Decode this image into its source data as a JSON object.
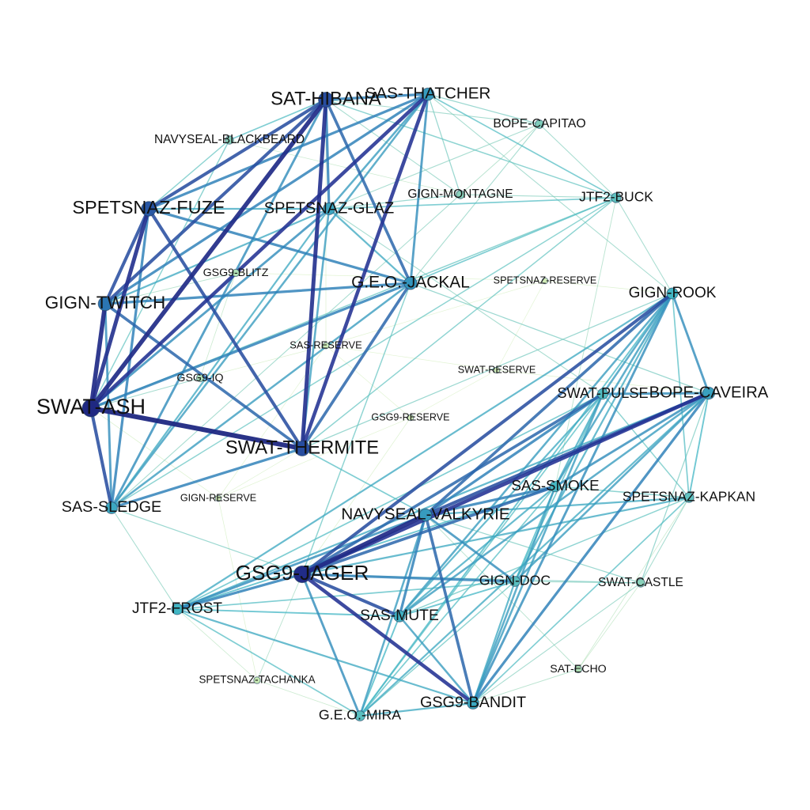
{
  "chart_data": {
    "type": "network",
    "description_note": "",
    "nodes": [
      {
        "id": "SWAT-ASH",
        "label": "SWAT-ASH",
        "weight": 1.0
      },
      {
        "id": "GSG9-JAGER",
        "label": "GSG9-JAGER",
        "weight": 0.95
      },
      {
        "id": "SAT-HIBANA",
        "label": "SAT-HIBANA",
        "weight": 0.8
      },
      {
        "id": "SWAT-THERMITE",
        "label": "SWAT-THERMITE",
        "weight": 0.8
      },
      {
        "id": "SPETSNAZ-FUZE",
        "label": "SPETSNAZ-FUZE",
        "weight": 0.78
      },
      {
        "id": "GIGN-TWITCH",
        "label": "GIGN-TWITCH",
        "weight": 0.72
      },
      {
        "id": "SAS-THATCHER",
        "label": "SAS-THATCHER",
        "weight": 0.6
      },
      {
        "id": "G.E.O.-JACKAL",
        "label": "G.E.O.-JACKAL",
        "weight": 0.62
      },
      {
        "id": "SPETSNAZ-GLAZ",
        "label": "SPETSNAZ-GLAZ",
        "weight": 0.56
      },
      {
        "id": "NAVYSEAL-VALKYRIE",
        "label": "NAVYSEAL-VALKYRIE",
        "weight": 0.6
      },
      {
        "id": "BOPE-CAVEIRA",
        "label": "BOPE-CAVEIRA",
        "weight": 0.58
      },
      {
        "id": "SAS-SLEDGE",
        "label": "SAS-SLEDGE",
        "weight": 0.55
      },
      {
        "id": "GSG9-BANDIT",
        "label": "GSG9-BANDIT",
        "weight": 0.55
      },
      {
        "id": "SAS-MUTE",
        "label": "SAS-MUTE",
        "weight": 0.52
      },
      {
        "id": "GIGN-ROOK",
        "label": "GIGN-ROOK",
        "weight": 0.5
      },
      {
        "id": "JTF2-FROST",
        "label": "JTF2-FROST",
        "weight": 0.5
      },
      {
        "id": "SAS-SMOKE",
        "label": "SAS-SMOKE",
        "weight": 0.48
      },
      {
        "id": "SWAT-PULSE",
        "label": "SWAT-PULSE",
        "weight": 0.45
      },
      {
        "id": "GIGN-DOC",
        "label": "GIGN-DOC",
        "weight": 0.42
      },
      {
        "id": "G.E.O.-MIRA",
        "label": "G.E.O.-MIRA",
        "weight": 0.42
      },
      {
        "id": "SPETSNAZ-KAPKAN",
        "label": "SPETSNAZ-KAPKAN",
        "weight": 0.4
      },
      {
        "id": "JTF2-BUCK",
        "label": "JTF2-BUCK",
        "weight": 0.4
      },
      {
        "id": "BOPE-CAPITAO",
        "label": "BOPE-CAPITAO",
        "weight": 0.3
      },
      {
        "id": "NAVYSEAL-BLACKBEARD",
        "label": "NAVYSEAL-BLACKBEARD",
        "weight": 0.28
      },
      {
        "id": "GIGN-MONTAGNE",
        "label": "GIGN-MONTAGNE",
        "weight": 0.28
      },
      {
        "id": "SWAT-CASTLE",
        "label": "SWAT-CASTLE",
        "weight": 0.28
      },
      {
        "id": "GSG9-BLITZ",
        "label": "GSG9-BLITZ",
        "weight": 0.2
      },
      {
        "id": "GSG9-IQ",
        "label": "GSG9-IQ",
        "weight": 0.2
      },
      {
        "id": "SAT-ECHO",
        "label": "SAT-ECHO",
        "weight": 0.2
      },
      {
        "id": "SPETSNAZ-TACHANKA",
        "label": "SPETSNAZ-TACHANKA",
        "weight": 0.15
      },
      {
        "id": "SAS-RESERVE",
        "label": "SAS-RESERVE",
        "weight": 0.12
      },
      {
        "id": "SWAT-RESERVE",
        "label": "SWAT-RESERVE",
        "weight": 0.1
      },
      {
        "id": "SPETSNAZ-RESERVE",
        "label": "SPETSNAZ-RESERVE",
        "weight": 0.1
      },
      {
        "id": "GSG9-RESERVE",
        "label": "GSG9-RESERVE",
        "weight": 0.1
      },
      {
        "id": "GIGN-RESERVE",
        "label": "GIGN-RESERVE",
        "weight": 0.1
      }
    ],
    "edges": [
      [
        "SWAT-ASH",
        "SWAT-THERMITE",
        1.0
      ],
      [
        "SWAT-ASH",
        "GIGN-TWITCH",
        0.95
      ],
      [
        "SWAT-ASH",
        "SAT-HIBANA",
        0.95
      ],
      [
        "SWAT-ASH",
        "SPETSNAZ-FUZE",
        0.9
      ],
      [
        "SWAT-ASH",
        "SAS-THATCHER",
        0.85
      ],
      [
        "SWAT-ASH",
        "SAS-SLEDGE",
        0.8
      ],
      [
        "SWAT-ASH",
        "G.E.O.-JACKAL",
        0.7
      ],
      [
        "SWAT-ASH",
        "SPETSNAZ-GLAZ",
        0.65
      ],
      [
        "SWAT-ASH",
        "GSG9-IQ",
        0.3
      ],
      [
        "SWAT-ASH",
        "NAVYSEAL-BLACKBEARD",
        0.4
      ],
      [
        "SWAT-ASH",
        "JTF2-BUCK",
        0.4
      ],
      [
        "SWAT-ASH",
        "GSG9-BLITZ",
        0.3
      ],
      [
        "SAT-HIBANA",
        "SWAT-THERMITE",
        0.9
      ],
      [
        "SAT-HIBANA",
        "SPETSNAZ-FUZE",
        0.8
      ],
      [
        "SAT-HIBANA",
        "GIGN-TWITCH",
        0.8
      ],
      [
        "SAT-HIBANA",
        "G.E.O.-JACKAL",
        0.75
      ],
      [
        "SAT-HIBANA",
        "SAS-THATCHER",
        0.7
      ],
      [
        "SAT-HIBANA",
        "SPETSNAZ-GLAZ",
        0.7
      ],
      [
        "SAT-HIBANA",
        "SAS-SLEDGE",
        0.65
      ],
      [
        "SAT-HIBANA",
        "NAVYSEAL-BLACKBEARD",
        0.45
      ],
      [
        "SAT-HIBANA",
        "JTF2-BUCK",
        0.4
      ],
      [
        "SAT-HIBANA",
        "BOPE-CAPITAO",
        0.3
      ],
      [
        "SAT-HIBANA",
        "GIGN-MONTAGNE",
        0.3
      ],
      [
        "SAS-THATCHER",
        "SWAT-THERMITE",
        0.85
      ],
      [
        "SAS-THATCHER",
        "SPETSNAZ-FUZE",
        0.7
      ],
      [
        "SAS-THATCHER",
        "GIGN-TWITCH",
        0.7
      ],
      [
        "SAS-THATCHER",
        "G.E.O.-JACKAL",
        0.65
      ],
      [
        "SAS-THATCHER",
        "SAS-SLEDGE",
        0.6
      ],
      [
        "SAS-THATCHER",
        "SPETSNAZ-GLAZ",
        0.6
      ],
      [
        "SAS-THATCHER",
        "JTF2-BUCK",
        0.45
      ],
      [
        "SAS-THATCHER",
        "BOPE-CAPITAO",
        0.35
      ],
      [
        "SAS-THATCHER",
        "GIGN-MONTAGNE",
        0.35
      ],
      [
        "SPETSNAZ-FUZE",
        "GIGN-TWITCH",
        0.8
      ],
      [
        "SPETSNAZ-FUZE",
        "SWAT-THERMITE",
        0.8
      ],
      [
        "SPETSNAZ-FUZE",
        "G.E.O.-JACKAL",
        0.7
      ],
      [
        "SPETSNAZ-FUZE",
        "SAS-SLEDGE",
        0.7
      ],
      [
        "SPETSNAZ-FUZE",
        "SPETSNAZ-GLAZ",
        0.55
      ],
      [
        "SPETSNAZ-FUZE",
        "NAVYSEAL-BLACKBEARD",
        0.4
      ],
      [
        "GIGN-TWITCH",
        "SWAT-THERMITE",
        0.75
      ],
      [
        "GIGN-TWITCH",
        "G.E.O.-JACKAL",
        0.7
      ],
      [
        "GIGN-TWITCH",
        "SAS-SLEDGE",
        0.65
      ],
      [
        "GIGN-TWITCH",
        "SPETSNAZ-GLAZ",
        0.55
      ],
      [
        "GIGN-TWITCH",
        "GSG9-BLITZ",
        0.25
      ],
      [
        "SWAT-THERMITE",
        "G.E.O.-JACKAL",
        0.75
      ],
      [
        "SWAT-THERMITE",
        "SAS-SLEDGE",
        0.7
      ],
      [
        "SWAT-THERMITE",
        "SPETSNAZ-GLAZ",
        0.6
      ],
      [
        "SWAT-THERMITE",
        "JTF2-BUCK",
        0.4
      ],
      [
        "SWAT-THERMITE",
        "GIGN-RESERVE",
        0.15
      ],
      [
        "G.E.O.-JACKAL",
        "SAS-SLEDGE",
        0.6
      ],
      [
        "G.E.O.-JACKAL",
        "SPETSNAZ-GLAZ",
        0.55
      ],
      [
        "G.E.O.-JACKAL",
        "JTF2-BUCK",
        0.45
      ],
      [
        "G.E.O.-JACKAL",
        "BOPE-CAPITAO",
        0.3
      ],
      [
        "SAS-SLEDGE",
        "SPETSNAZ-GLAZ",
        0.55
      ],
      [
        "SAS-SLEDGE",
        "JTF2-BUCK",
        0.4
      ],
      [
        "SAS-SLEDGE",
        "GIGN-MONTAGNE",
        0.3
      ],
      [
        "SPETSNAZ-GLAZ",
        "JTF2-BUCK",
        0.45
      ],
      [
        "SPETSNAZ-GLAZ",
        "GIGN-MONTAGNE",
        0.35
      ],
      [
        "SPETSNAZ-GLAZ",
        "BOPE-CAPITAO",
        0.3
      ],
      [
        "JTF2-BUCK",
        "BOPE-CAPITAO",
        0.3
      ],
      [
        "JTF2-BUCK",
        "GIGN-MONTAGNE",
        0.3
      ],
      [
        "GSG9-JAGER",
        "NAVYSEAL-VALKYRIE",
        0.95
      ],
      [
        "GSG9-JAGER",
        "BOPE-CAVEIRA",
        0.85
      ],
      [
        "GSG9-JAGER",
        "GIGN-ROOK",
        0.8
      ],
      [
        "GSG9-JAGER",
        "GSG9-BANDIT",
        0.85
      ],
      [
        "GSG9-JAGER",
        "SAS-MUTE",
        0.8
      ],
      [
        "GSG9-JAGER",
        "SAS-SMOKE",
        0.75
      ],
      [
        "GSG9-JAGER",
        "SWAT-PULSE",
        0.75
      ],
      [
        "GSG9-JAGER",
        "GIGN-DOC",
        0.7
      ],
      [
        "GSG9-JAGER",
        "JTF2-FROST",
        0.7
      ],
      [
        "GSG9-JAGER",
        "G.E.O.-MIRA",
        0.65
      ],
      [
        "GSG9-JAGER",
        "SPETSNAZ-KAPKAN",
        0.55
      ],
      [
        "GSG9-JAGER",
        "SWAT-CASTLE",
        0.35
      ],
      [
        "GSG9-JAGER",
        "SPETSNAZ-TACHANKA",
        0.25
      ],
      [
        "NAVYSEAL-VALKYRIE",
        "BOPE-CAVEIRA",
        0.8
      ],
      [
        "NAVYSEAL-VALKYRIE",
        "GIGN-ROOK",
        0.75
      ],
      [
        "NAVYSEAL-VALKYRIE",
        "GSG9-BANDIT",
        0.75
      ],
      [
        "NAVYSEAL-VALKYRIE",
        "SAS-MUTE",
        0.7
      ],
      [
        "NAVYSEAL-VALKYRIE",
        "SAS-SMOKE",
        0.7
      ],
      [
        "NAVYSEAL-VALKYRIE",
        "SWAT-PULSE",
        0.7
      ],
      [
        "NAVYSEAL-VALKYRIE",
        "GIGN-DOC",
        0.65
      ],
      [
        "NAVYSEAL-VALKYRIE",
        "JTF2-FROST",
        0.65
      ],
      [
        "NAVYSEAL-VALKYRIE",
        "G.E.O.-MIRA",
        0.6
      ],
      [
        "NAVYSEAL-VALKYRIE",
        "SPETSNAZ-KAPKAN",
        0.55
      ],
      [
        "NAVYSEAL-VALKYRIE",
        "SWAT-CASTLE",
        0.35
      ],
      [
        "NAVYSEAL-VALKYRIE",
        "SAT-ECHO",
        0.25
      ],
      [
        "BOPE-CAVEIRA",
        "GIGN-ROOK",
        0.65
      ],
      [
        "BOPE-CAVEIRA",
        "GSG9-BANDIT",
        0.7
      ],
      [
        "BOPE-CAVEIRA",
        "SAS-MUTE",
        0.6
      ],
      [
        "BOPE-CAVEIRA",
        "SAS-SMOKE",
        0.65
      ],
      [
        "BOPE-CAVEIRA",
        "SWAT-PULSE",
        0.65
      ],
      [
        "BOPE-CAVEIRA",
        "GIGN-DOC",
        0.6
      ],
      [
        "BOPE-CAVEIRA",
        "JTF2-FROST",
        0.55
      ],
      [
        "BOPE-CAVEIRA",
        "G.E.O.-MIRA",
        0.55
      ],
      [
        "BOPE-CAVEIRA",
        "SPETSNAZ-KAPKAN",
        0.5
      ],
      [
        "BOPE-CAVEIRA",
        "SWAT-CASTLE",
        0.35
      ],
      [
        "GIGN-ROOK",
        "GSG9-BANDIT",
        0.65
      ],
      [
        "GIGN-ROOK",
        "SAS-MUTE",
        0.6
      ],
      [
        "GIGN-ROOK",
        "SAS-SMOKE",
        0.6
      ],
      [
        "GIGN-ROOK",
        "SWAT-PULSE",
        0.6
      ],
      [
        "GIGN-ROOK",
        "GIGN-DOC",
        0.55
      ],
      [
        "GIGN-ROOK",
        "JTF2-FROST",
        0.55
      ],
      [
        "GIGN-ROOK",
        "G.E.O.-MIRA",
        0.5
      ],
      [
        "GIGN-ROOK",
        "SPETSNAZ-KAPKAN",
        0.45
      ],
      [
        "GSG9-BANDIT",
        "SAS-MUTE",
        0.6
      ],
      [
        "GSG9-BANDIT",
        "SAS-SMOKE",
        0.6
      ],
      [
        "GSG9-BANDIT",
        "SWAT-PULSE",
        0.6
      ],
      [
        "GSG9-BANDIT",
        "GIGN-DOC",
        0.55
      ],
      [
        "GSG9-BANDIT",
        "JTF2-FROST",
        0.55
      ],
      [
        "GSG9-BANDIT",
        "G.E.O.-MIRA",
        0.55
      ],
      [
        "GSG9-BANDIT",
        "SPETSNAZ-KAPKAN",
        0.45
      ],
      [
        "GSG9-BANDIT",
        "SWAT-CASTLE",
        0.3
      ],
      [
        "GSG9-BANDIT",
        "SAT-ECHO",
        0.25
      ],
      [
        "SAS-MUTE",
        "SAS-SMOKE",
        0.55
      ],
      [
        "SAS-MUTE",
        "SWAT-PULSE",
        0.55
      ],
      [
        "SAS-MUTE",
        "GIGN-DOC",
        0.5
      ],
      [
        "SAS-MUTE",
        "JTF2-FROST",
        0.5
      ],
      [
        "SAS-MUTE",
        "G.E.O.-MIRA",
        0.5
      ],
      [
        "SAS-MUTE",
        "SPETSNAZ-KAPKAN",
        0.4
      ],
      [
        "SAS-SMOKE",
        "SWAT-PULSE",
        0.55
      ],
      [
        "SAS-SMOKE",
        "GIGN-DOC",
        0.5
      ],
      [
        "SAS-SMOKE",
        "JTF2-FROST",
        0.5
      ],
      [
        "SAS-SMOKE",
        "G.E.O.-MIRA",
        0.45
      ],
      [
        "SAS-SMOKE",
        "SPETSNAZ-KAPKAN",
        0.4
      ],
      [
        "SWAT-PULSE",
        "GIGN-DOC",
        0.45
      ],
      [
        "SWAT-PULSE",
        "JTF2-FROST",
        0.45
      ],
      [
        "SWAT-PULSE",
        "G.E.O.-MIRA",
        0.45
      ],
      [
        "SWAT-PULSE",
        "SPETSNAZ-KAPKAN",
        0.4
      ],
      [
        "GIGN-DOC",
        "JTF2-FROST",
        0.45
      ],
      [
        "GIGN-DOC",
        "G.E.O.-MIRA",
        0.4
      ],
      [
        "GIGN-DOC",
        "SWAT-CASTLE",
        0.3
      ],
      [
        "JTF2-FROST",
        "G.E.O.-MIRA",
        0.45
      ],
      [
        "JTF2-FROST",
        "SPETSNAZ-TACHANKA",
        0.2
      ],
      [
        "G.E.O.-MIRA",
        "SPETSNAZ-TACHANKA",
        0.2
      ],
      [
        "SPETSNAZ-KAPKAN",
        "SWAT-CASTLE",
        0.3
      ],
      [
        "SPETSNAZ-KAPKAN",
        "SAT-ECHO",
        0.2
      ],
      [
        "SWAT-THERMITE",
        "NAVYSEAL-VALKYRIE",
        0.45
      ],
      [
        "SWAT-THERMITE",
        "GIGN-ROOK",
        0.35
      ],
      [
        "G.E.O.-JACKAL",
        "GSG9-JAGER",
        0.4
      ],
      [
        "G.E.O.-JACKAL",
        "BOPE-CAVEIRA",
        0.35
      ],
      [
        "SAS-SLEDGE",
        "GSG9-JAGER",
        0.35
      ],
      [
        "SAS-SLEDGE",
        "JTF2-FROST",
        0.3
      ],
      [
        "SPETSNAZ-GLAZ",
        "SWAT-PULSE",
        0.3
      ],
      [
        "SAS-THATCHER",
        "GIGN-ROOK",
        0.3
      ],
      [
        "JTF2-BUCK",
        "GIGN-ROOK",
        0.3
      ],
      [
        "JTF2-BUCK",
        "SAS-SMOKE",
        0.25
      ],
      [
        "SAS-RESERVE",
        "SWAT-RESERVE",
        0.12
      ],
      [
        "SAS-RESERVE",
        "GSG9-RESERVE",
        0.12
      ],
      [
        "SAS-RESERVE",
        "GIGN-RESERVE",
        0.12
      ],
      [
        "SAS-RESERVE",
        "SPETSNAZ-RESERVE",
        0.12
      ],
      [
        "SWAT-RESERVE",
        "GSG9-RESERVE",
        0.12
      ],
      [
        "SWAT-RESERVE",
        "SPETSNAZ-RESERVE",
        0.12
      ],
      [
        "GSG9-RESERVE",
        "GIGN-RESERVE",
        0.12
      ],
      [
        "SPETSNAZ-RESERVE",
        "GSG9-BLITZ",
        0.12
      ],
      [
        "SPETSNAZ-RESERVE",
        "GIGN-ROOK",
        0.15
      ],
      [
        "SWAT-RESERVE",
        "BOPE-CAVEIRA",
        0.15
      ],
      [
        "GSG9-RESERVE",
        "GSG9-JAGER",
        0.15
      ],
      [
        "GIGN-RESERVE",
        "SWAT-ASH",
        0.15
      ],
      [
        "SAS-RESERVE",
        "SAT-HIBANA",
        0.15
      ],
      [
        "GSG9-IQ",
        "GSG9-BLITZ",
        0.2
      ],
      [
        "GSG9-IQ",
        "SAS-RESERVE",
        0.15
      ],
      [
        "SAT-ECHO",
        "SWAT-CASTLE",
        0.2
      ],
      [
        "SPETSNAZ-TACHANKA",
        "GIGN-RESERVE",
        0.15
      ],
      [
        "NAVYSEAL-BLACKBEARD",
        "GIGN-MONTAGNE",
        0.2
      ],
      [
        "BOPE-CAPITAO",
        "GIGN-MONTAGNE",
        0.25
      ]
    ]
  }
}
